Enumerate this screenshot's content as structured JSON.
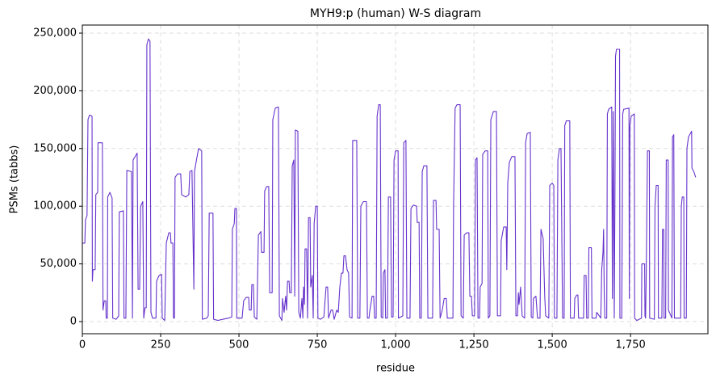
{
  "chart_data": {
    "type": "line",
    "title": "MYH9:p (human) W-S diagram",
    "x_label": "residue",
    "y_label": "PSMs (tabbs)",
    "grid": true,
    "xlim": [
      0,
      1997
    ],
    "ylim": [
      -10500,
      257000
    ],
    "xticks": [
      0,
      250,
      500,
      750,
      {
        "value": 1000,
        "label": "1,000"
      },
      {
        "value": 1250,
        "label": "1,250"
      },
      {
        "value": 1500,
        "label": "1,500"
      },
      {
        "value": 1750,
        "label": "1,750"
      }
    ],
    "yticks": [
      0,
      {
        "value": 50000,
        "label": "50,000"
      },
      {
        "value": 100000,
        "label": "100,000"
      },
      {
        "value": 150000,
        "label": "150,000"
      },
      {
        "value": 200000,
        "label": "200,000"
      },
      {
        "value": 250000,
        "label": "250,000"
      }
    ],
    "color": "#6633cc",
    "x": [
      0,
      8,
      10,
      15,
      18,
      23,
      31,
      32,
      34,
      41,
      43,
      49,
      50,
      64,
      66,
      70,
      75,
      76,
      80,
      81,
      88,
      95,
      97,
      108,
      116,
      118,
      131,
      133,
      139,
      142,
      157,
      160,
      162,
      175,
      178,
      183,
      186,
      193,
      196,
      200,
      204,
      206,
      211,
      216,
      219,
      224,
      235,
      237,
      245,
      253,
      255,
      263,
      268,
      276,
      281,
      283,
      289,
      291,
      294,
      296,
      304,
      314,
      317,
      330,
      340,
      343,
      350,
      356,
      358,
      363,
      371,
      381,
      383,
      397,
      402,
      405,
      417,
      419,
      433,
      448,
      466,
      477,
      479,
      485,
      487,
      492,
      493,
      510,
      515,
      523,
      531,
      533,
      539,
      541,
      546,
      549,
      557,
      562,
      570,
      572,
      580,
      582,
      588,
      595,
      598,
      606,
      608,
      616,
      626,
      629,
      637,
      639,
      644,
      649,
      652,
      655,
      660,
      662,
      667,
      670,
      675,
      678,
      680,
      688,
      691,
      696,
      701,
      704,
      706,
      709,
      711,
      716,
      719,
      722,
      727,
      729,
      734,
      737,
      740,
      745,
      750,
      752,
      760,
      771,
      778,
      783,
      786,
      794,
      799,
      804,
      812,
      817,
      822,
      827,
      832,
      835,
      840,
      845,
      850,
      853,
      861,
      863,
      876,
      879,
      886,
      889,
      897,
      907,
      910,
      915,
      917,
      925,
      930,
      933,
      938,
      941,
      946,
      951,
      954,
      959,
      961,
      966,
      968,
      974,
      977,
      984,
      987,
      992,
      995,
      1000,
      1008,
      1009,
      1023,
      1026,
      1033,
      1036,
      1046,
      1049,
      1057,
      1067,
      1069,
      1075,
      1077,
      1082,
      1085,
      1090,
      1100,
      1103,
      1118,
      1121,
      1129,
      1131,
      1139,
      1142,
      1149,
      1155,
      1162,
      1165,
      1183,
      1185,
      1190,
      1196,
      1206,
      1209,
      1216,
      1219,
      1227,
      1234,
      1237,
      1242,
      1245,
      1252,
      1255,
      1260,
      1263,
      1268,
      1270,
      1276,
      1278,
      1286,
      1294,
      1296,
      1301,
      1304,
      1312,
      1322,
      1325,
      1335,
      1337,
      1345,
      1353,
      1355,
      1358,
      1363,
      1371,
      1381,
      1384,
      1389,
      1392,
      1394,
      1399,
      1404,
      1412,
      1415,
      1420,
      1430,
      1433,
      1438,
      1440,
      1448,
      1453,
      1461,
      1464,
      1471,
      1476,
      1479,
      1489,
      1492,
      1500,
      1505,
      1507,
      1515,
      1518,
      1523,
      1528,
      1533,
      1538,
      1540,
      1545,
      1556,
      1558,
      1570,
      1572,
      1578,
      1582,
      1584,
      1600,
      1602,
      1608,
      1610,
      1615,
      1617,
      1625,
      1627,
      1640,
      1642,
      1650,
      1655,
      1658,
      1662,
      1664,
      1666,
      1668,
      1674,
      1676,
      1680,
      1690,
      1692,
      1695,
      1698,
      1700,
      1702,
      1705,
      1715,
      1716,
      1722,
      1725,
      1728,
      1745,
      1746,
      1748,
      1752,
      1762,
      1763,
      1770,
      1785,
      1786,
      1795,
      1796,
      1798,
      1800,
      1804,
      1810,
      1811,
      1826,
      1828,
      1832,
      1838,
      1839,
      1850,
      1852,
      1856,
      1857,
      1862,
      1864,
      1870,
      1871,
      1882,
      1884,
      1888,
      1890,
      1910,
      1912,
      1915,
      1920,
      1921,
      1928,
      1930,
      1935,
      1945,
      1946,
      1952,
      1958
    ],
    "values": [
      68000,
      68000,
      88000,
      92000,
      175000,
      179000,
      178000,
      35000,
      45000,
      45000,
      110000,
      112000,
      155000,
      155000,
      10000,
      18000,
      18000,
      3000,
      3000,
      108000,
      112000,
      107000,
      3000,
      2000,
      5000,
      95000,
      96000,
      3000,
      3000,
      131000,
      130000,
      3000,
      140000,
      146000,
      28000,
      28000,
      100000,
      104000,
      3000,
      12000,
      12000,
      240000,
      245000,
      243000,
      8000,
      3000,
      3000,
      35000,
      40000,
      41000,
      3000,
      1000,
      68000,
      77000,
      77000,
      68000,
      68000,
      3000,
      3000,
      125000,
      128000,
      128000,
      110000,
      108000,
      110000,
      130000,
      131000,
      28000,
      130000,
      138000,
      150000,
      148000,
      2000,
      3000,
      5000,
      94000,
      94000,
      2000,
      1000,
      2000,
      3000,
      4000,
      80000,
      85000,
      98000,
      98000,
      3000,
      3000,
      18000,
      21000,
      21000,
      10000,
      10000,
      32000,
      32000,
      4000,
      2000,
      75000,
      78000,
      60000,
      60000,
      113000,
      117000,
      117000,
      25000,
      25000,
      175000,
      185000,
      186000,
      5000,
      1000,
      20000,
      8000,
      22000,
      10000,
      35000,
      35000,
      25000,
      25000,
      135000,
      140000,
      22000,
      166000,
      165000,
      8000,
      3000,
      20000,
      3000,
      30000,
      15000,
      63000,
      63000,
      3000,
      90000,
      90000,
      30000,
      40000,
      3000,
      85000,
      100000,
      100000,
      3000,
      2000,
      4000,
      30000,
      30000,
      3000,
      10000,
      10000,
      2000,
      10000,
      8000,
      30000,
      42000,
      42000,
      57000,
      57000,
      45000,
      42000,
      4000,
      3000,
      157000,
      157000,
      3000,
      3000,
      100000,
      104000,
      104000,
      3000,
      3000,
      8000,
      22000,
      22000,
      3000,
      3000,
      178000,
      188000,
      188000,
      4000,
      3000,
      42000,
      45000,
      3000,
      3000,
      108000,
      108000,
      4000,
      4000,
      140000,
      148000,
      148000,
      3000,
      5000,
      155000,
      157000,
      3000,
      3000,
      98000,
      101000,
      100000,
      86000,
      86000,
      3000,
      3000,
      130000,
      135000,
      135000,
      3000,
      3000,
      105000,
      105000,
      80000,
      80000,
      3000,
      10000,
      20000,
      20000,
      3000,
      3000,
      100000,
      185000,
      188000,
      188000,
      5000,
      3000,
      75000,
      77000,
      77000,
      22000,
      22000,
      5000,
      5000,
      140000,
      142000,
      3000,
      3000,
      30000,
      33000,
      145000,
      148000,
      148000,
      3000,
      5000,
      175000,
      182000,
      182000,
      5000,
      5000,
      70000,
      82000,
      82000,
      45000,
      120000,
      138000,
      143000,
      143000,
      5000,
      5000,
      25000,
      15000,
      30000,
      5000,
      3000,
      155000,
      163000,
      164000,
      4000,
      3000,
      20000,
      22000,
      3000,
      3000,
      80000,
      72000,
      22000,
      5000,
      3000,
      118000,
      120000,
      118000,
      3000,
      3000,
      140000,
      150000,
      150000,
      3000,
      3000,
      170000,
      174000,
      174000,
      3000,
      3000,
      20000,
      23000,
      23000,
      3000,
      3000,
      40000,
      40000,
      3000,
      3000,
      64000,
      64000,
      3000,
      3000,
      8000,
      5000,
      3000,
      45000,
      60000,
      80000,
      25000,
      3000,
      3000,
      180000,
      184000,
      186000,
      20000,
      182000,
      3000,
      100000,
      230000,
      236000,
      236000,
      3000,
      3000,
      180000,
      184000,
      185000,
      20000,
      170000,
      178000,
      180000,
      3000,
      1000,
      3000,
      50000,
      50000,
      5000,
      3000,
      40000,
      148000,
      148000,
      3000,
      2000,
      100000,
      118000,
      118000,
      3000,
      3000,
      80000,
      80000,
      3000,
      3000,
      140000,
      140000,
      10000,
      3000,
      160000,
      162000,
      3000,
      3000,
      100000,
      108000,
      108000,
      3000,
      3000,
      150000,
      160000,
      165000,
      133000,
      130000,
      125000
    ]
  }
}
